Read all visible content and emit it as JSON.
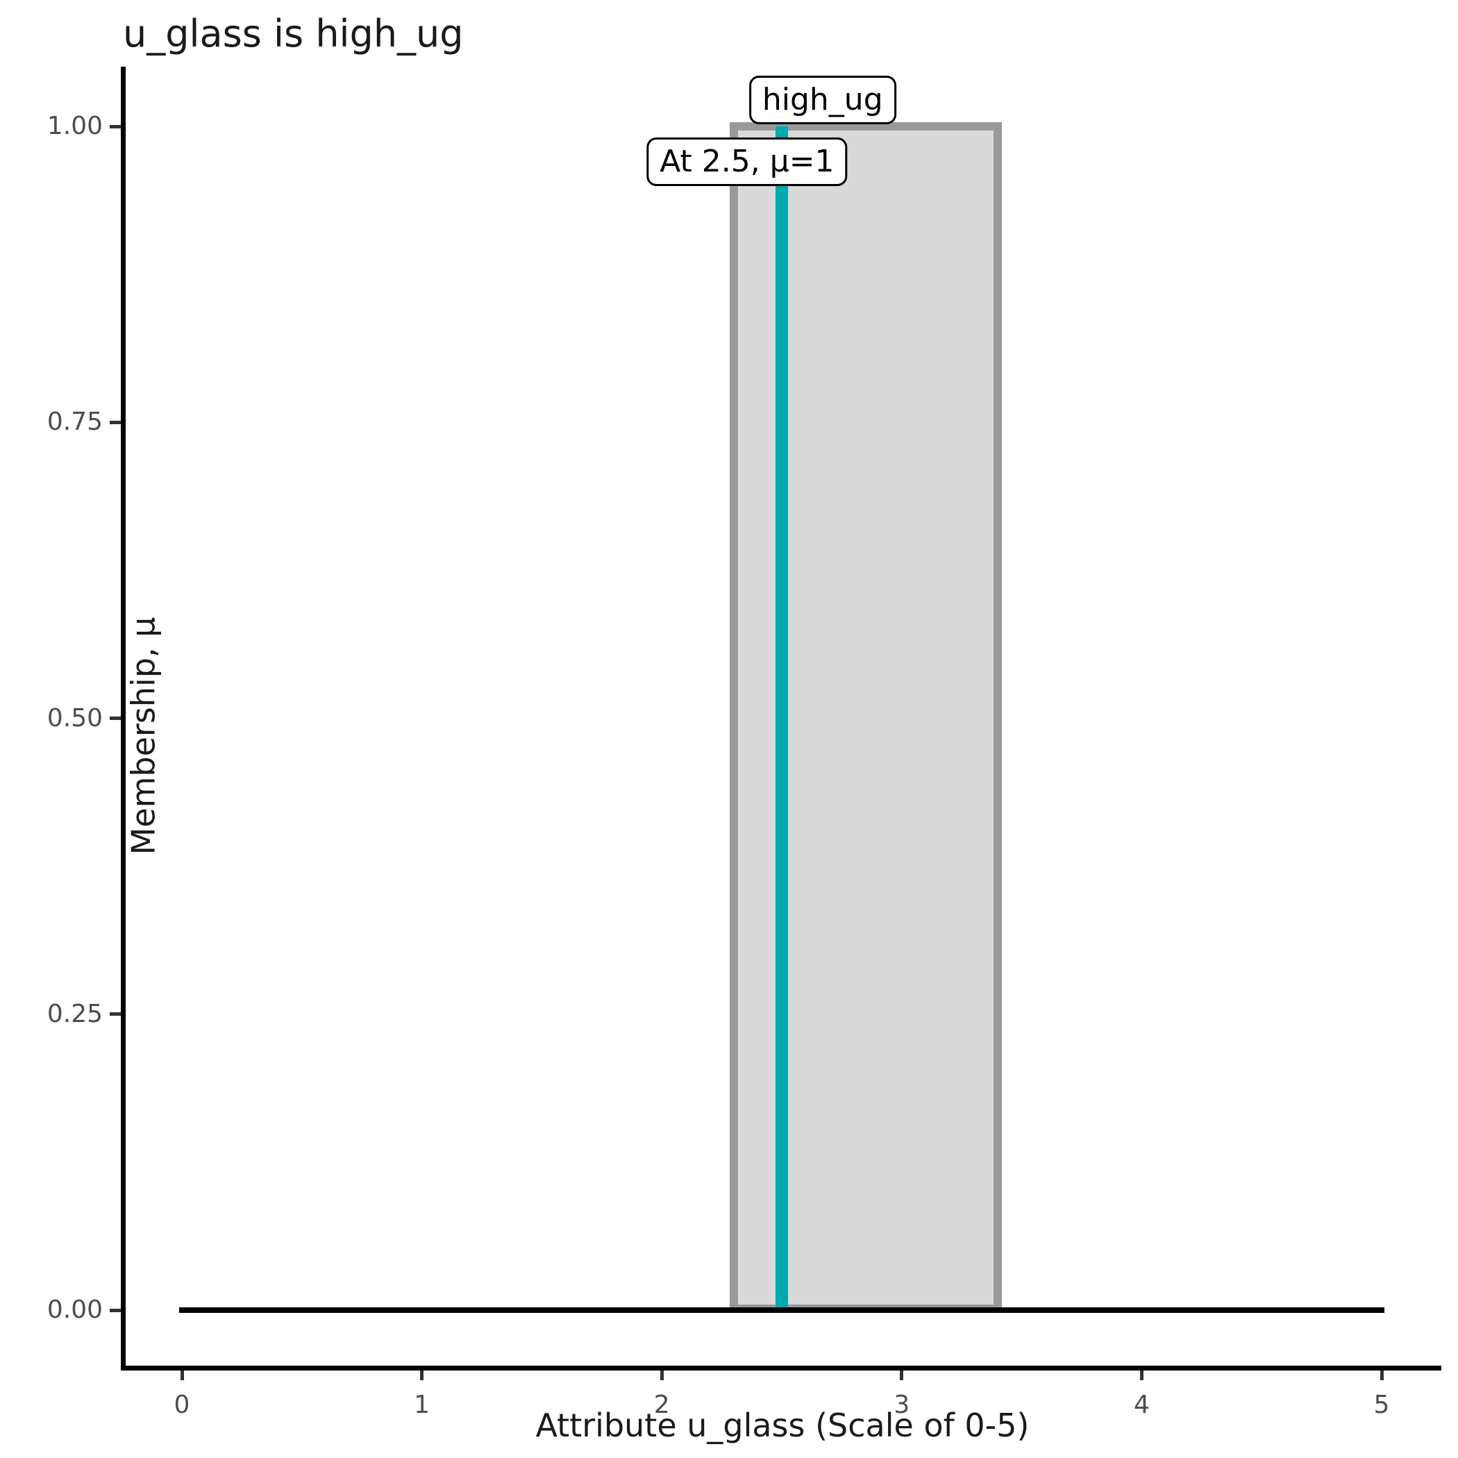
{
  "title": "u_glass is high_ug",
  "colors": {
    "marker_line": "#00a9ad",
    "set_fill": "#d9d9d9",
    "set_stroke": "#999999",
    "baseline": "#000000",
    "axis_line": "#000000",
    "tick_mark": "#333333",
    "tick_label": "#4d4d4d",
    "title_text": "#1a1a1a",
    "label_box_bg": "#ffffff",
    "label_box_border": "#000000"
  },
  "chart_data": {
    "type": "area",
    "title": "u_glass is high_ug",
    "xlabel": "Attribute u_glass (Scale of 0-5)",
    "ylabel": "Membership, μ",
    "xlim": [
      0,
      5
    ],
    "ylim": [
      0,
      1
    ],
    "grid": false,
    "legend": false,
    "x_ticks": [
      {
        "value": 0,
        "label": "0"
      },
      {
        "value": 1,
        "label": "1"
      },
      {
        "value": 2,
        "label": "2"
      },
      {
        "value": 3,
        "label": "3"
      },
      {
        "value": 4,
        "label": "4"
      },
      {
        "value": 5,
        "label": "5"
      }
    ],
    "y_ticks": [
      {
        "value": 0.0,
        "label": "0.00"
      },
      {
        "value": 0.25,
        "label": "0.25"
      },
      {
        "value": 0.5,
        "label": "0.50"
      },
      {
        "value": 0.75,
        "label": "0.75"
      },
      {
        "value": 1.0,
        "label": "1.00"
      }
    ],
    "fuzzy_set": {
      "name": "high_ug",
      "shape": "rectangular",
      "x_left": 2.3,
      "x_right": 3.4,
      "membership_inside": 1,
      "membership_outside": 0
    },
    "baseline_segment": {
      "x_start": 0,
      "x_end": 5,
      "mu": 0
    },
    "marker": {
      "x": 2.5,
      "mu": 1
    },
    "annotations": [
      {
        "id": "set-name-label",
        "text": "high_ug",
        "anchor_x": 2.67,
        "anchor_mu": 1.022
      },
      {
        "id": "evaluation-label",
        "text": "At 2.5, μ=1",
        "anchor_x": 2.355,
        "anchor_mu": 0.97
      }
    ]
  }
}
